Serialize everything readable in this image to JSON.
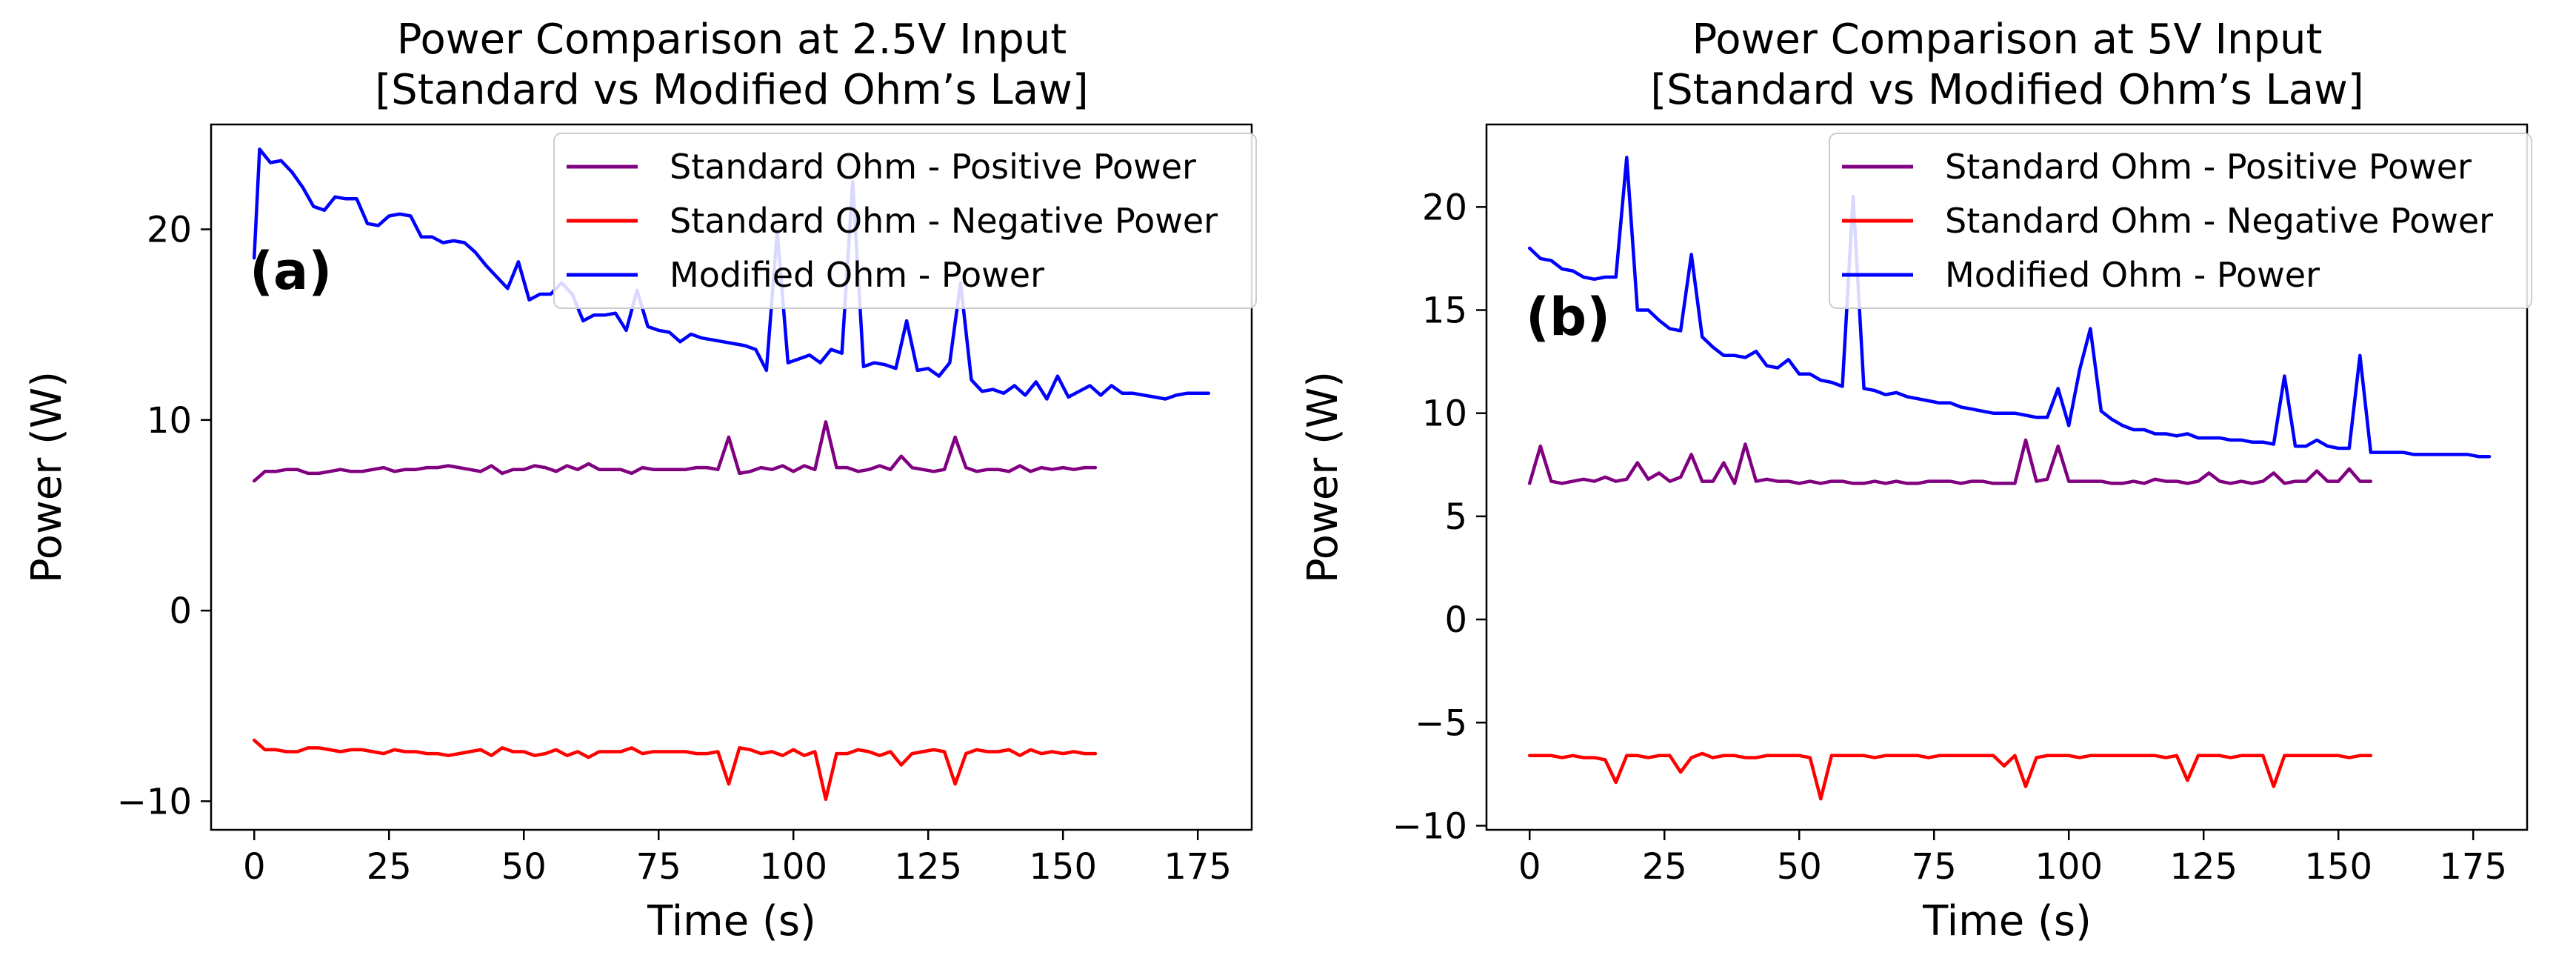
{
  "chart_data": [
    {
      "type": "line",
      "title_line1": "Power Comparison at 2.5V Input",
      "title_line2": "[Standard vs Modified Ohm’s Law]",
      "xlabel": "Time (s)",
      "ylabel": "Power (W)",
      "panel_label": "(a)",
      "xlim": [
        -8,
        185
      ],
      "ylim": [
        -11.5,
        25.5
      ],
      "xticks": [
        0,
        25,
        50,
        75,
        100,
        125,
        150,
        175
      ],
      "yticks": [
        -10,
        0,
        10,
        20
      ],
      "grid": false,
      "legend_position": "top-right",
      "series": [
        {
          "name": "Standard Ohm - Positive Power",
          "color": "#800080",
          "x": [
            0,
            2,
            4,
            6,
            8,
            10,
            12,
            14,
            16,
            18,
            20,
            22,
            24,
            26,
            28,
            30,
            32,
            34,
            36,
            38,
            40,
            42,
            44,
            46,
            48,
            50,
            52,
            54,
            56,
            58,
            60,
            62,
            64,
            66,
            68,
            70,
            72,
            74,
            76,
            78,
            80,
            82,
            84,
            86,
            88,
            90,
            92,
            94,
            96,
            98,
            100,
            102,
            104,
            106,
            108,
            110,
            112,
            114,
            116,
            118,
            120,
            122,
            124,
            126,
            128,
            130,
            132,
            134,
            136,
            138,
            140,
            142,
            144,
            146,
            148,
            150,
            152,
            154,
            156
          ],
          "values": [
            6.8,
            7.3,
            7.3,
            7.4,
            7.4,
            7.2,
            7.2,
            7.3,
            7.4,
            7.3,
            7.3,
            7.4,
            7.5,
            7.3,
            7.4,
            7.4,
            7.5,
            7.5,
            7.6,
            7.5,
            7.4,
            7.3,
            7.6,
            7.2,
            7.4,
            7.4,
            7.6,
            7.5,
            7.3,
            7.6,
            7.4,
            7.7,
            7.4,
            7.4,
            7.4,
            7.2,
            7.5,
            7.4,
            7.4,
            7.4,
            7.4,
            7.5,
            7.5,
            7.4,
            9.1,
            7.2,
            7.3,
            7.5,
            7.4,
            7.6,
            7.3,
            7.6,
            7.4,
            9.9,
            7.5,
            7.5,
            7.3,
            7.4,
            7.6,
            7.4,
            8.1,
            7.5,
            7.4,
            7.3,
            7.4,
            9.1,
            7.5,
            7.3,
            7.4,
            7.4,
            7.3,
            7.6,
            7.3,
            7.5,
            7.4,
            7.5,
            7.4,
            7.5,
            7.5
          ]
        },
        {
          "name": "Standard Ohm - Negative Power",
          "color": "#ff0000",
          "x": [
            0,
            2,
            4,
            6,
            8,
            10,
            12,
            14,
            16,
            18,
            20,
            22,
            24,
            26,
            28,
            30,
            32,
            34,
            36,
            38,
            40,
            42,
            44,
            46,
            48,
            50,
            52,
            54,
            56,
            58,
            60,
            62,
            64,
            66,
            68,
            70,
            72,
            74,
            76,
            78,
            80,
            82,
            84,
            86,
            88,
            90,
            92,
            94,
            96,
            98,
            100,
            102,
            104,
            106,
            108,
            110,
            112,
            114,
            116,
            118,
            120,
            122,
            124,
            126,
            128,
            130,
            132,
            134,
            136,
            138,
            140,
            142,
            144,
            146,
            148,
            150,
            152,
            154,
            156
          ],
          "values": [
            -6.8,
            -7.3,
            -7.3,
            -7.4,
            -7.4,
            -7.2,
            -7.2,
            -7.3,
            -7.4,
            -7.3,
            -7.3,
            -7.4,
            -7.5,
            -7.3,
            -7.4,
            -7.4,
            -7.5,
            -7.5,
            -7.6,
            -7.5,
            -7.4,
            -7.3,
            -7.6,
            -7.2,
            -7.4,
            -7.4,
            -7.6,
            -7.5,
            -7.3,
            -7.6,
            -7.4,
            -7.7,
            -7.4,
            -7.4,
            -7.4,
            -7.2,
            -7.5,
            -7.4,
            -7.4,
            -7.4,
            -7.4,
            -7.5,
            -7.5,
            -7.4,
            -9.1,
            -7.2,
            -7.3,
            -7.5,
            -7.4,
            -7.6,
            -7.3,
            -7.6,
            -7.4,
            -9.9,
            -7.5,
            -7.5,
            -7.3,
            -7.4,
            -7.6,
            -7.4,
            -8.1,
            -7.5,
            -7.4,
            -7.3,
            -7.4,
            -9.1,
            -7.5,
            -7.3,
            -7.4,
            -7.4,
            -7.3,
            -7.6,
            -7.3,
            -7.5,
            -7.4,
            -7.5,
            -7.4,
            -7.5,
            -7.5
          ]
        },
        {
          "name": "Modified Ohm - Power",
          "color": "#0000ff",
          "x": [
            0,
            1,
            3,
            5,
            7,
            9,
            11,
            13,
            15,
            17,
            19,
            21,
            23,
            25,
            27,
            29,
            31,
            33,
            35,
            37,
            39,
            41,
            43,
            45,
            47,
            49,
            51,
            53,
            55,
            57,
            59,
            61,
            63,
            65,
            67,
            69,
            71,
            73,
            75,
            77,
            79,
            81,
            83,
            85,
            87,
            89,
            91,
            93,
            95,
            97,
            99,
            101,
            103,
            105,
            107,
            109,
            111,
            113,
            115,
            117,
            119,
            121,
            123,
            125,
            127,
            129,
            131,
            133,
            135,
            137,
            139,
            141,
            143,
            145,
            147,
            149,
            151,
            153,
            155,
            157,
            159,
            161,
            163,
            165,
            167,
            169,
            171,
            173,
            175,
            177
          ],
          "values": [
            18.5,
            24.2,
            23.5,
            23.6,
            23.0,
            22.2,
            21.2,
            21.0,
            21.7,
            21.6,
            21.6,
            20.3,
            20.2,
            20.7,
            20.8,
            20.7,
            19.6,
            19.6,
            19.3,
            19.4,
            19.3,
            18.8,
            18.1,
            17.5,
            16.9,
            18.3,
            16.3,
            16.6,
            16.6,
            17.2,
            16.6,
            15.2,
            15.5,
            15.5,
            15.6,
            14.7,
            16.8,
            14.9,
            14.7,
            14.6,
            14.1,
            14.5,
            14.3,
            14.2,
            14.1,
            14.0,
            13.9,
            13.7,
            12.6,
            19.9,
            13.0,
            13.2,
            13.4,
            13.0,
            13.7,
            13.5,
            22.5,
            12.8,
            13.0,
            12.9,
            12.7,
            15.2,
            12.6,
            12.7,
            12.3,
            13.0,
            17.2,
            12.1,
            11.5,
            11.6,
            11.4,
            11.8,
            11.3,
            12.0,
            11.1,
            12.3,
            11.2,
            11.5,
            11.8,
            11.3,
            11.8,
            11.4,
            11.4,
            11.3,
            11.2,
            11.1,
            11.3,
            11.4,
            11.4,
            11.4
          ]
        }
      ]
    },
    {
      "type": "line",
      "title_line1": "Power Comparison at 5V Input",
      "title_line2": "[Standard vs Modified Ohm’s Law]",
      "xlabel": "Time (s)",
      "ylabel": "Power (W)",
      "panel_label": "(b)",
      "xlim": [
        -8,
        185
      ],
      "ylim": [
        -10.2,
        24.0
      ],
      "xticks": [
        0,
        25,
        50,
        75,
        100,
        125,
        150,
        175
      ],
      "yticks": [
        -10,
        -5,
        0,
        5,
        10,
        15,
        20
      ],
      "grid": false,
      "legend_position": "top-right",
      "series": [
        {
          "name": "Standard Ohm - Positive Power",
          "color": "#800080",
          "x": [
            0,
            2,
            4,
            6,
            8,
            10,
            12,
            14,
            16,
            18,
            20,
            22,
            24,
            26,
            28,
            30,
            32,
            34,
            36,
            38,
            40,
            42,
            44,
            46,
            48,
            50,
            52,
            54,
            56,
            58,
            60,
            62,
            64,
            66,
            68,
            70,
            72,
            74,
            76,
            78,
            80,
            82,
            84,
            86,
            88,
            90,
            92,
            94,
            96,
            98,
            100,
            102,
            104,
            106,
            108,
            110,
            112,
            114,
            116,
            118,
            120,
            122,
            124,
            126,
            128,
            130,
            132,
            134,
            136,
            138,
            140,
            142,
            144,
            146,
            148,
            150,
            152,
            154,
            156
          ],
          "values": [
            6.6,
            8.4,
            6.7,
            6.6,
            6.7,
            6.8,
            6.7,
            6.9,
            6.7,
            6.8,
            7.6,
            6.8,
            7.1,
            6.7,
            6.9,
            8.0,
            6.7,
            6.7,
            7.6,
            6.6,
            8.5,
            6.7,
            6.8,
            6.7,
            6.7,
            6.6,
            6.7,
            6.6,
            6.7,
            6.7,
            6.6,
            6.6,
            6.7,
            6.6,
            6.7,
            6.6,
            6.6,
            6.7,
            6.7,
            6.7,
            6.6,
            6.7,
            6.7,
            6.6,
            6.6,
            6.6,
            8.7,
            6.7,
            6.8,
            8.4,
            6.7,
            6.7,
            6.7,
            6.7,
            6.6,
            6.6,
            6.7,
            6.6,
            6.8,
            6.7,
            6.7,
            6.6,
            6.7,
            7.1,
            6.7,
            6.6,
            6.7,
            6.6,
            6.7,
            7.1,
            6.6,
            6.7,
            6.7,
            7.2,
            6.7,
            6.7,
            7.3,
            6.7,
            6.7
          ]
        },
        {
          "name": "Standard Ohm - Negative Power",
          "color": "#ff0000",
          "x": [
            0,
            2,
            4,
            6,
            8,
            10,
            12,
            14,
            16,
            18,
            20,
            22,
            24,
            26,
            28,
            30,
            32,
            34,
            36,
            38,
            40,
            42,
            44,
            46,
            48,
            50,
            52,
            54,
            56,
            58,
            60,
            62,
            64,
            66,
            68,
            70,
            72,
            74,
            76,
            78,
            80,
            82,
            84,
            86,
            88,
            90,
            92,
            94,
            96,
            98,
            100,
            102,
            104,
            106,
            108,
            110,
            112,
            114,
            116,
            118,
            120,
            122,
            124,
            126,
            128,
            130,
            132,
            134,
            136,
            138,
            140,
            142,
            144,
            146,
            148,
            150,
            152,
            154,
            156
          ],
          "values": [
            -6.6,
            -6.6,
            -6.6,
            -6.7,
            -6.6,
            -6.7,
            -6.7,
            -6.8,
            -7.9,
            -6.6,
            -6.6,
            -6.7,
            -6.6,
            -6.6,
            -7.4,
            -6.7,
            -6.5,
            -6.7,
            -6.6,
            -6.6,
            -6.7,
            -6.7,
            -6.6,
            -6.6,
            -6.6,
            -6.6,
            -6.7,
            -8.7,
            -6.6,
            -6.6,
            -6.6,
            -6.6,
            -6.7,
            -6.6,
            -6.6,
            -6.6,
            -6.6,
            -6.7,
            -6.6,
            -6.6,
            -6.6,
            -6.6,
            -6.6,
            -6.6,
            -7.1,
            -6.6,
            -8.1,
            -6.7,
            -6.6,
            -6.6,
            -6.6,
            -6.7,
            -6.6,
            -6.6,
            -6.6,
            -6.6,
            -6.6,
            -6.6,
            -6.6,
            -6.7,
            -6.6,
            -7.8,
            -6.6,
            -6.6,
            -6.6,
            -6.7,
            -6.6,
            -6.6,
            -6.6,
            -8.1,
            -6.6,
            -6.6,
            -6.6,
            -6.6,
            -6.6,
            -6.6,
            -6.7,
            -6.6,
            -6.6
          ]
        },
        {
          "name": "Modified Ohm - Power",
          "color": "#0000ff",
          "x": [
            0,
            2,
            4,
            6,
            8,
            10,
            12,
            14,
            16,
            18,
            20,
            22,
            24,
            26,
            28,
            30,
            32,
            34,
            36,
            38,
            40,
            42,
            44,
            46,
            48,
            50,
            52,
            54,
            56,
            58,
            60,
            62,
            64,
            66,
            68,
            70,
            72,
            74,
            76,
            78,
            80,
            82,
            84,
            86,
            88,
            90,
            92,
            94,
            96,
            98,
            100,
            102,
            104,
            106,
            108,
            110,
            112,
            114,
            116,
            118,
            120,
            122,
            124,
            126,
            128,
            130,
            132,
            134,
            136,
            138,
            140,
            142,
            144,
            146,
            148,
            150,
            152,
            154,
            156,
            158,
            160,
            162,
            164,
            166,
            168,
            170,
            172,
            174,
            176,
            178
          ],
          "values": [
            18.0,
            17.5,
            17.4,
            17.0,
            16.9,
            16.6,
            16.5,
            16.6,
            16.6,
            22.4,
            15.0,
            15.0,
            14.5,
            14.1,
            14.0,
            17.7,
            13.7,
            13.2,
            12.8,
            12.8,
            12.7,
            13.0,
            12.3,
            12.2,
            12.6,
            11.9,
            11.9,
            11.6,
            11.5,
            11.3,
            20.5,
            11.2,
            11.1,
            10.9,
            11.0,
            10.8,
            10.7,
            10.6,
            10.5,
            10.5,
            10.3,
            10.2,
            10.1,
            10.0,
            10.0,
            10.0,
            9.9,
            9.8,
            9.8,
            11.2,
            9.4,
            12.1,
            14.1,
            10.1,
            9.7,
            9.4,
            9.2,
            9.2,
            9.0,
            9.0,
            8.9,
            9.0,
            8.8,
            8.8,
            8.8,
            8.7,
            8.7,
            8.6,
            8.6,
            8.5,
            11.8,
            8.4,
            8.4,
            8.7,
            8.4,
            8.3,
            8.3,
            12.8,
            8.1,
            8.1,
            8.1,
            8.1,
            8.0,
            8.0,
            8.0,
            8.0,
            8.0,
            8.0,
            7.9,
            7.9
          ]
        }
      ]
    }
  ]
}
